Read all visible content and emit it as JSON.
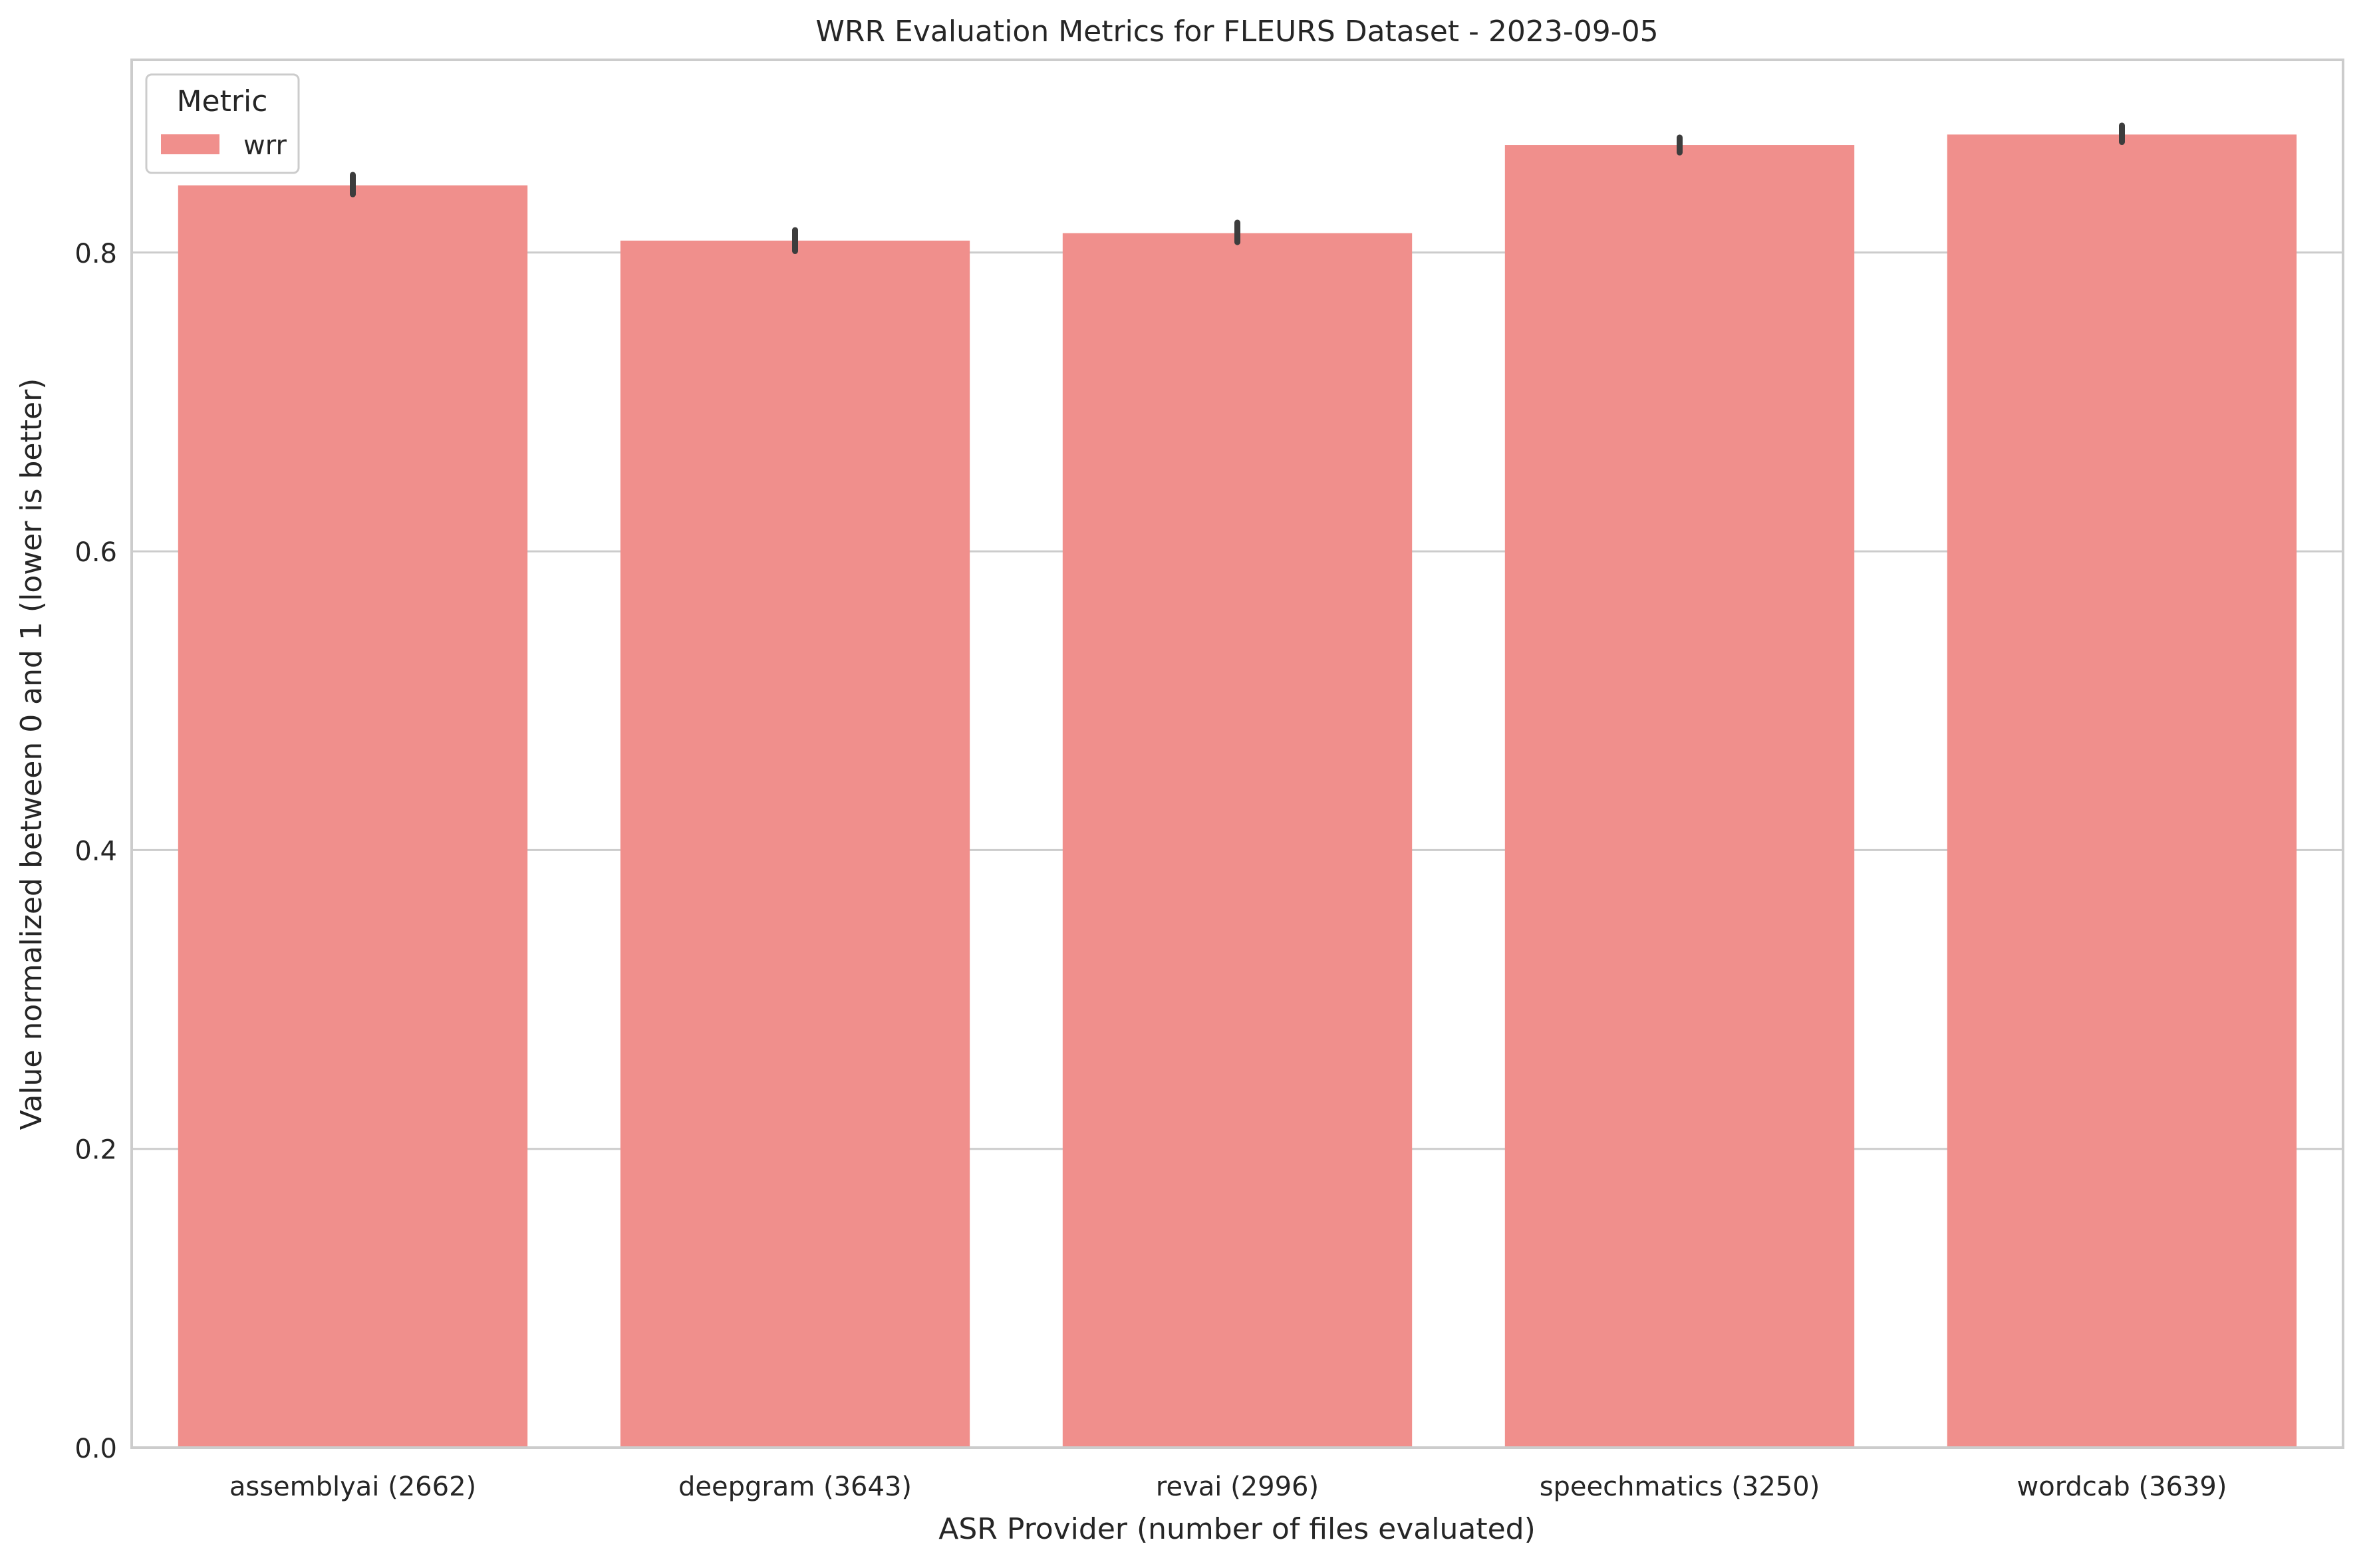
{
  "chart_data": {
    "type": "bar",
    "title": "WRR Evaluation Metrics for FLEURS Dataset - 2023-09-05",
    "xlabel": "ASR Provider (number of files evaluated)",
    "ylabel": "Value normalized between 0 and 1 (lower is better)",
    "categories": [
      "assemblyai (2662)",
      "deepgram (3643)",
      "revai (2996)",
      "speechmatics (3250)",
      "wordcab (3639)"
    ],
    "series": [
      {
        "name": "wrr",
        "values": [
          0.845,
          0.808,
          0.813,
          0.872,
          0.879
        ],
        "error_low": [
          0.839,
          0.801,
          0.807,
          0.867,
          0.874
        ],
        "error_high": [
          0.852,
          0.815,
          0.82,
          0.877,
          0.885
        ]
      }
    ],
    "ylim": [
      0,
      0.929
    ],
    "yticks": [
      0.0,
      0.2,
      0.4,
      0.6,
      0.8
    ],
    "ytick_labels": [
      "0.0",
      "0.2",
      "0.4",
      "0.6",
      "0.8"
    ],
    "grid": "horizontal",
    "legend": {
      "title": "Metric",
      "placement": "top-left",
      "entries": [
        "wrr"
      ]
    },
    "colors": {
      "bar": "#f08f8c",
      "error_bar": "#3d3d3d",
      "grid": "#cccccc",
      "frame": "#cccccc",
      "text": "#262626"
    }
  }
}
